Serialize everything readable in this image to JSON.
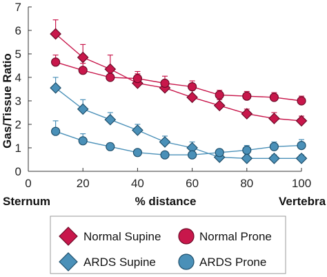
{
  "chart_data": {
    "type": "line",
    "title": "",
    "ylabel": "Gas/Tissue Ratio",
    "xlabel": "% distance",
    "x_left_label": "Sternum",
    "x_right_label": "Vertebra",
    "xlim": [
      0,
      100
    ],
    "ylim": [
      0,
      7
    ],
    "xticks": [
      0,
      20,
      40,
      60,
      80,
      100
    ],
    "yticks": [
      0,
      1,
      2,
      3,
      4,
      5,
      6,
      7
    ],
    "grid": false,
    "legend_position": "bottom",
    "x": [
      10,
      20,
      30,
      40,
      50,
      60,
      70,
      80,
      90,
      100
    ],
    "series": [
      {
        "name": "Normal Supine",
        "marker": "diamond",
        "color": "#c8174b",
        "values": [
          5.85,
          4.85,
          4.35,
          3.75,
          3.55,
          3.15,
          2.8,
          2.45,
          2.25,
          2.15
        ],
        "errors": [
          0.6,
          0.55,
          0.6,
          0.4,
          0.3,
          0.3,
          0.25,
          0.2,
          0.25,
          0.2
        ]
      },
      {
        "name": "Normal Prone",
        "marker": "circle",
        "color": "#c8174b",
        "values": [
          4.65,
          4.3,
          4.0,
          3.95,
          3.75,
          3.6,
          3.25,
          3.2,
          3.15,
          3.0
        ],
        "errors": [
          0.3,
          0.3,
          0.25,
          0.3,
          0.3,
          0.25,
          0.2,
          0.2,
          0.2,
          0.2
        ]
      },
      {
        "name": "ARDS Supine",
        "marker": "diamond",
        "color": "#4a90b8",
        "values": [
          3.55,
          2.65,
          2.2,
          1.75,
          1.25,
          1.0,
          0.6,
          0.55,
          0.55,
          0.55
        ],
        "errors": [
          0.45,
          0.4,
          0.3,
          0.25,
          0.25,
          0.25,
          0.15,
          0.15,
          0.15,
          0.15
        ]
      },
      {
        "name": "ARDS Prone",
        "marker": "circle",
        "color": "#4a90b8",
        "values": [
          1.7,
          1.3,
          1.05,
          0.8,
          0.7,
          0.7,
          0.8,
          0.9,
          1.05,
          1.1
        ],
        "errors": [
          0.45,
          0.3,
          0.15,
          0.05,
          0.05,
          0.05,
          0.15,
          0.2,
          0.2,
          0.25
        ]
      }
    ],
    "colors": {
      "normal": "#c8174b",
      "normal_marker_edge": "#6d0a28",
      "ards": "#4a90b8",
      "ards_marker_edge": "#1f4f6b",
      "line": "#8a1a3a"
    }
  }
}
